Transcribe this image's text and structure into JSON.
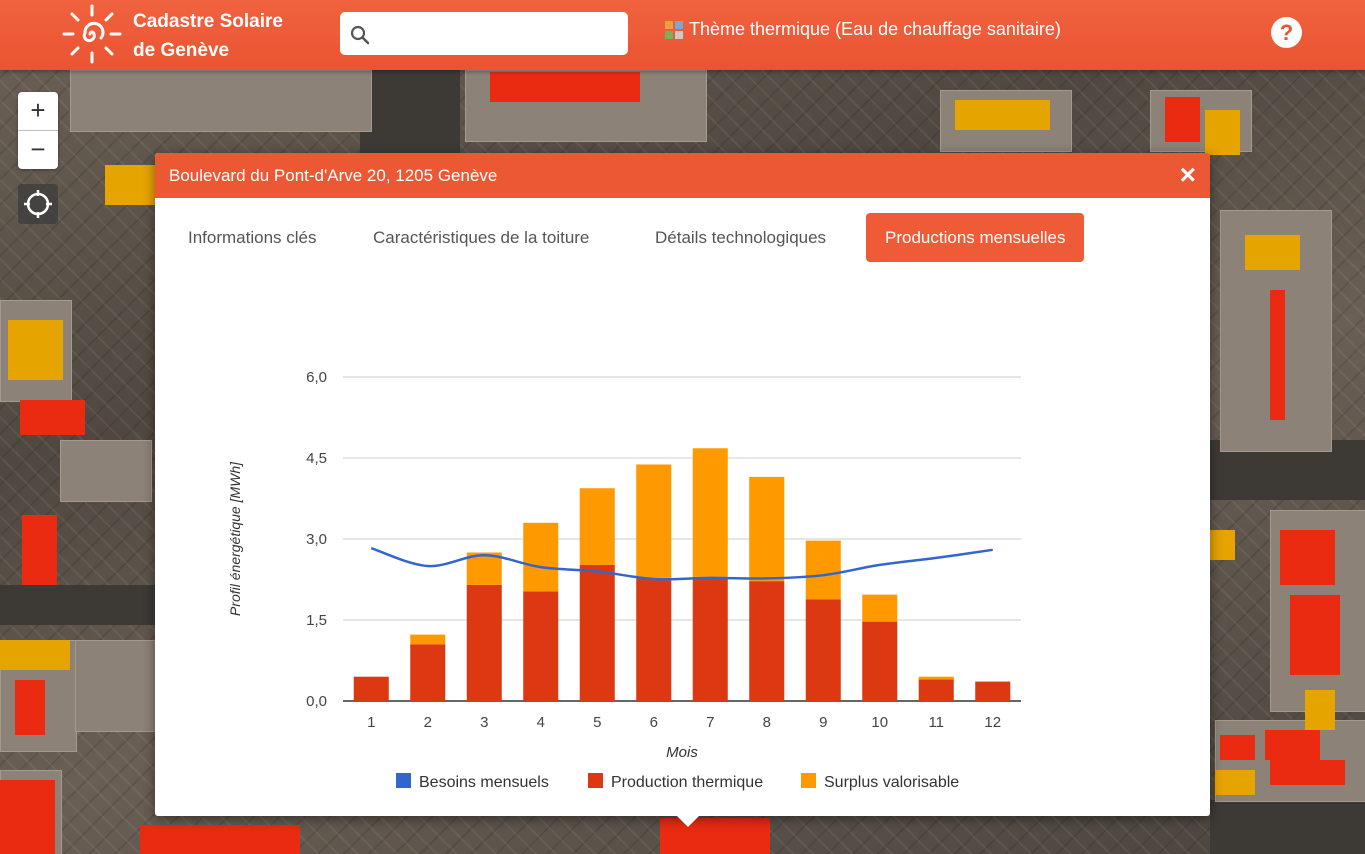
{
  "header": {
    "brand_line1": "Cadastre Solaire",
    "brand_line2": "de Genève",
    "search_placeholder": "",
    "theme_label": "Thème thermique (Eau de chauffage sanitaire)",
    "help_label": "?"
  },
  "map_controls": {
    "zoom_in": "+",
    "zoom_out": "−"
  },
  "popup": {
    "title": "Boulevard du Pont-d'Arve 20, 1205 Genève",
    "close": "×",
    "tabs": [
      {
        "label": "Informations clés",
        "active": false
      },
      {
        "label": "Caractéristiques de la toiture",
        "active": false
      },
      {
        "label": "Détails technologiques",
        "active": false
      },
      {
        "label": "Productions mensuelles",
        "active": true
      }
    ]
  },
  "colors": {
    "header": "#ea5431",
    "besoins": "#3366cc",
    "production": "#dc3912",
    "surplus": "#ff9900"
  },
  "chart_data": {
    "type": "bar",
    "stacked": true,
    "title": "",
    "xlabel": "Mois",
    "ylabel": "Profil énergétique [MWh]",
    "ylim": [
      0,
      6
    ],
    "ytick_values": [
      0,
      1.5,
      3,
      4.5,
      6
    ],
    "yticks": [
      "0,0",
      "1,5",
      "3,0",
      "4,5",
      "6,0"
    ],
    "categories": [
      "1",
      "2",
      "3",
      "4",
      "5",
      "6",
      "7",
      "8",
      "9",
      "10",
      "11",
      "12"
    ],
    "series": [
      {
        "name": "Production thermique",
        "kind": "bar",
        "values": [
          0.45,
          1.05,
          2.15,
          2.03,
          2.52,
          2.28,
          2.3,
          2.22,
          1.88,
          1.47,
          0.4,
          0.36
        ]
      },
      {
        "name": "Surplus valorisable",
        "kind": "bar",
        "values": [
          0.0,
          0.18,
          0.6,
          1.27,
          1.42,
          2.1,
          2.38,
          1.93,
          1.09,
          0.5,
          0.05,
          0.0
        ]
      },
      {
        "name": "Besoins mensuels",
        "kind": "line",
        "values": [
          2.83,
          2.5,
          2.7,
          2.48,
          2.4,
          2.26,
          2.28,
          2.27,
          2.33,
          2.52,
          2.65,
          2.8
        ]
      }
    ],
    "legend": [
      "Besoins mensuels",
      "Production thermique",
      "Surplus valorisable"
    ],
    "legend_position": "bottom"
  }
}
